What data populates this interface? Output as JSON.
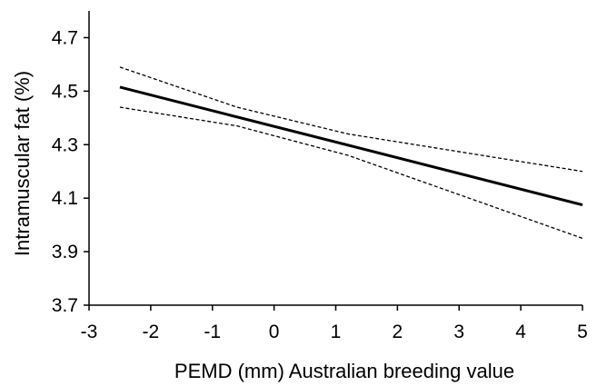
{
  "chart_data": {
    "type": "line",
    "title": "",
    "xlabel": "PEMD (mm) Australian breeding value",
    "ylabel": "Intramuscular fat (%)",
    "xlim": [
      -3,
      5
    ],
    "ylim": [
      3.7,
      4.8
    ],
    "x_ticks": [
      -3,
      -2,
      -1,
      0,
      1,
      2,
      3,
      4,
      5
    ],
    "y_ticks": [
      3.7,
      3.9,
      4.1,
      4.3,
      4.5,
      4.7
    ],
    "x_tick_labels": [
      "-3",
      "-2",
      "-1",
      "0",
      "1",
      "2",
      "3",
      "4",
      "5"
    ],
    "y_tick_labels": [
      "3.7",
      "3.9",
      "4.1",
      "4.3",
      "4.5",
      "4.7"
    ],
    "grid": false,
    "legend": "none",
    "series": [
      {
        "style": "solid",
        "color": "#000000",
        "x": [
          -2.5,
          5
        ],
        "y": [
          4.515,
          4.075
        ]
      },
      {
        "style": "dashed",
        "color": "#000000",
        "x": [
          -2.5,
          -0.6,
          1.2,
          5
        ],
        "y": [
          4.59,
          4.44,
          4.34,
          4.2
        ]
      },
      {
        "style": "dashed",
        "color": "#000000",
        "x": [
          -2.5,
          -0.6,
          1.2,
          5
        ],
        "y": [
          4.44,
          4.37,
          4.26,
          3.95
        ]
      }
    ]
  }
}
